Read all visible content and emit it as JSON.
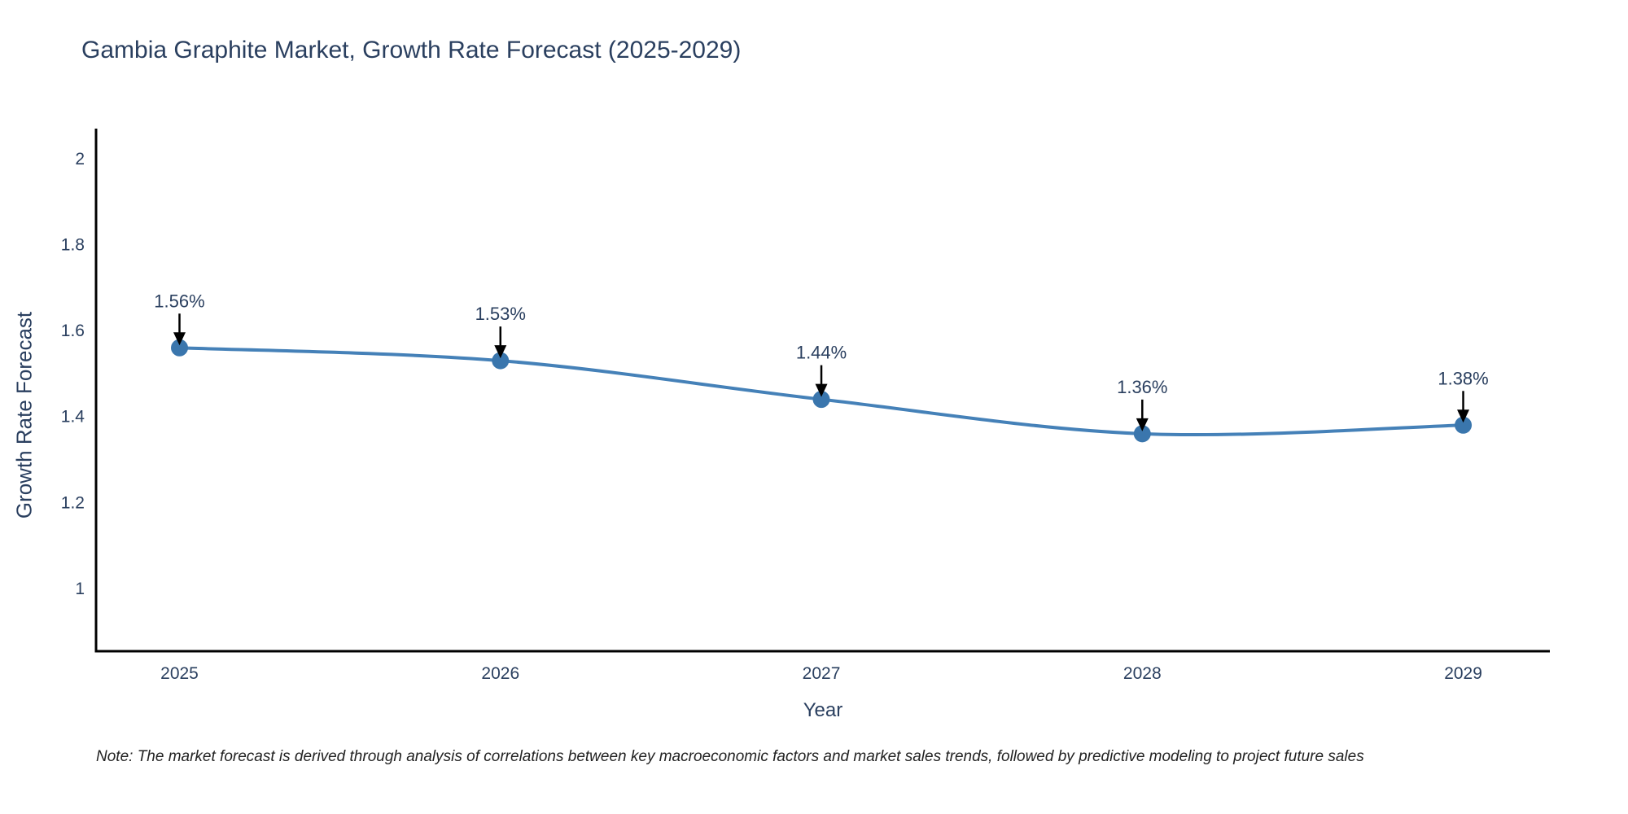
{
  "chart_data": {
    "type": "line",
    "title": "Gambia Graphite Market, Growth Rate Forecast (2025-2029)",
    "xlabel": "Year",
    "ylabel": "Growth Rate Forecast",
    "x": [
      2025,
      2026,
      2027,
      2028,
      2029
    ],
    "series": [
      {
        "name": "Growth Rate Forecast",
        "values": [
          1.56,
          1.53,
          1.44,
          1.36,
          1.38
        ],
        "point_labels": [
          "1.56%",
          "1.53%",
          "1.44%",
          "1.36%",
          "1.38%"
        ]
      }
    ],
    "yticks": [
      1,
      1.2,
      1.4,
      1.6,
      1.8,
      2
    ],
    "ytick_labels": [
      "1",
      "1.2",
      "1.4",
      "1.6",
      "1.8",
      "2"
    ],
    "xtick_labels": [
      "2025",
      "2026",
      "2027",
      "2028",
      "2029"
    ],
    "xlim": [
      2024.74,
      2029.27
    ],
    "ylim": [
      0.854,
      2.07
    ],
    "grid": false,
    "legend_position": "none",
    "line_color": "#4581b8",
    "marker_color": "#3a76ad",
    "arrow_color": "#000000",
    "axis_color": "#000000",
    "label_color": "#2a3f5f"
  },
  "footnote": {
    "text": "Note: The market forecast is derived through analysis of correlations between key macroeconomic factors and market sales trends, followed by predictive modeling to project future sales",
    "color": "#222222"
  }
}
